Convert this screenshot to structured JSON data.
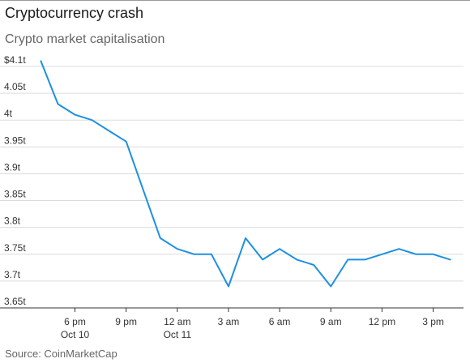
{
  "header": {
    "title": "Cryptocurrency crash",
    "subtitle": "Crypto market capitalisation"
  },
  "footer": {
    "source": "Source: CoinMarketCap"
  },
  "chart_data": {
    "type": "line",
    "title": "Cryptocurrency crash",
    "subtitle": "Crypto market capitalisation",
    "xlabel": "",
    "ylabel": "",
    "ylim": [
      3.65,
      4.1
    ],
    "y_ticks": [
      {
        "value": 3.65,
        "label": "3.65t"
      },
      {
        "value": 3.7,
        "label": "3.7t"
      },
      {
        "value": 3.75,
        "label": "3.75t"
      },
      {
        "value": 3.8,
        "label": "3.8t"
      },
      {
        "value": 3.85,
        "label": "3.85t"
      },
      {
        "value": 3.9,
        "label": "3.9t"
      },
      {
        "value": 3.95,
        "label": "3.95t"
      },
      {
        "value": 4.0,
        "label": "4t"
      },
      {
        "value": 4.05,
        "label": "4.05t"
      },
      {
        "value": 4.1,
        "label": "$4.1t"
      }
    ],
    "x_ticks": [
      {
        "x": "2025-10-10 18:00",
        "label": "6 pm",
        "sublabel": "Oct 10"
      },
      {
        "x": "2025-10-10 21:00",
        "label": "9 pm",
        "sublabel": ""
      },
      {
        "x": "2025-10-11 00:00",
        "label": "12 am",
        "sublabel": "Oct 11"
      },
      {
        "x": "2025-10-11 03:00",
        "label": "3 am",
        "sublabel": ""
      },
      {
        "x": "2025-10-11 06:00",
        "label": "6 am",
        "sublabel": ""
      },
      {
        "x": "2025-10-11 09:00",
        "label": "9 am",
        "sublabel": ""
      },
      {
        "x": "2025-10-11 12:00",
        "label": "12 pm",
        "sublabel": ""
      },
      {
        "x": "2025-10-11 15:00",
        "label": "3 pm",
        "sublabel": ""
      }
    ],
    "grid": true,
    "line_color": "#1e90e0",
    "series": [
      {
        "name": "",
        "x": [
          "2025-10-10 16:00",
          "2025-10-10 17:00",
          "2025-10-10 18:00",
          "2025-10-10 19:00",
          "2025-10-10 20:00",
          "2025-10-10 21:00",
          "2025-10-10 22:00",
          "2025-10-10 23:00",
          "2025-10-11 00:00",
          "2025-10-11 01:00",
          "2025-10-11 02:00",
          "2025-10-11 03:00",
          "2025-10-11 04:00",
          "2025-10-11 05:00",
          "2025-10-11 06:00",
          "2025-10-11 07:00",
          "2025-10-11 08:00",
          "2025-10-11 09:00",
          "2025-10-11 10:00",
          "2025-10-11 11:00",
          "2025-10-11 12:00",
          "2025-10-11 13:00",
          "2025-10-11 14:00",
          "2025-10-11 15:00",
          "2025-10-11 16:00"
        ],
        "values": [
          4.11,
          4.03,
          4.01,
          4.0,
          3.98,
          3.96,
          3.87,
          3.78,
          3.76,
          3.75,
          3.75,
          3.69,
          3.78,
          3.74,
          3.76,
          3.74,
          3.73,
          3.69,
          3.74,
          3.74,
          3.75,
          3.76,
          3.75,
          3.75,
          3.74
        ]
      }
    ]
  }
}
